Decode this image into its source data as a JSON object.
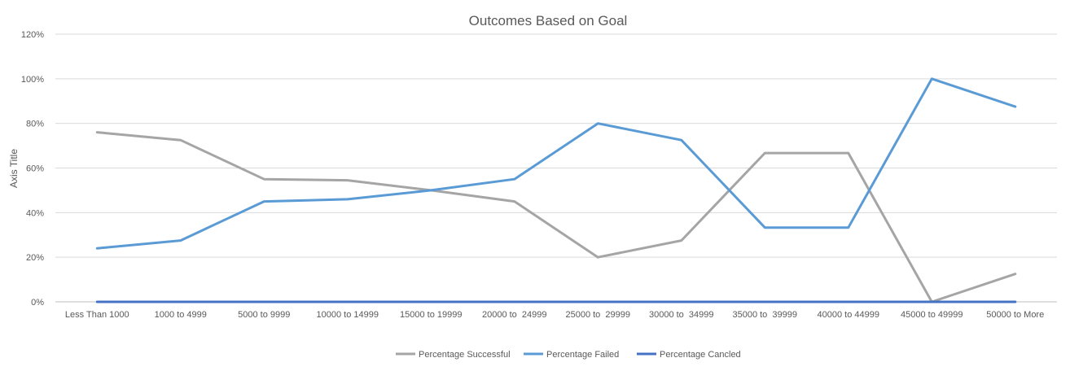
{
  "chart_data": {
    "type": "line",
    "title": "Outcomes Based on Goal",
    "xlabel": "",
    "ylabel": "Axis Title",
    "ylim": [
      0,
      1.2
    ],
    "y_ticks": [
      "0%",
      "20%",
      "40%",
      "60%",
      "80%",
      "100%",
      "120%"
    ],
    "y_tick_values": [
      0,
      0.2,
      0.4,
      0.6,
      0.8,
      1.0,
      1.2
    ],
    "categories": [
      "Less Than 1000",
      "1000 to 4999",
      "5000 to 9999",
      "10000 to 14999",
      "15000 to 19999",
      "20000 to  24999",
      "25000 to  29999",
      "30000 to  34999",
      "35000 to  39999",
      "40000 to 44999",
      "45000 to 49999",
      "50000 to More"
    ],
    "grid": true,
    "legend_position": "bottom",
    "series": [
      {
        "name": "Percentage Successful",
        "color": "#a5a5a5",
        "values": [
          0.76,
          0.725,
          0.55,
          0.545,
          0.5,
          0.45,
          0.2,
          0.275,
          0.667,
          0.667,
          0.0,
          0.125
        ]
      },
      {
        "name": "Percentage Failed",
        "color": "#5b9bd5",
        "values": [
          0.24,
          0.275,
          0.45,
          0.46,
          0.5,
          0.55,
          0.8,
          0.725,
          0.333,
          0.333,
          1.0,
          0.875
        ]
      },
      {
        "name": "Percentage Cancled",
        "color": "#4472c4",
        "values": [
          0,
          0,
          0,
          0,
          0,
          0,
          0,
          0,
          0,
          0,
          0,
          0
        ]
      }
    ]
  }
}
